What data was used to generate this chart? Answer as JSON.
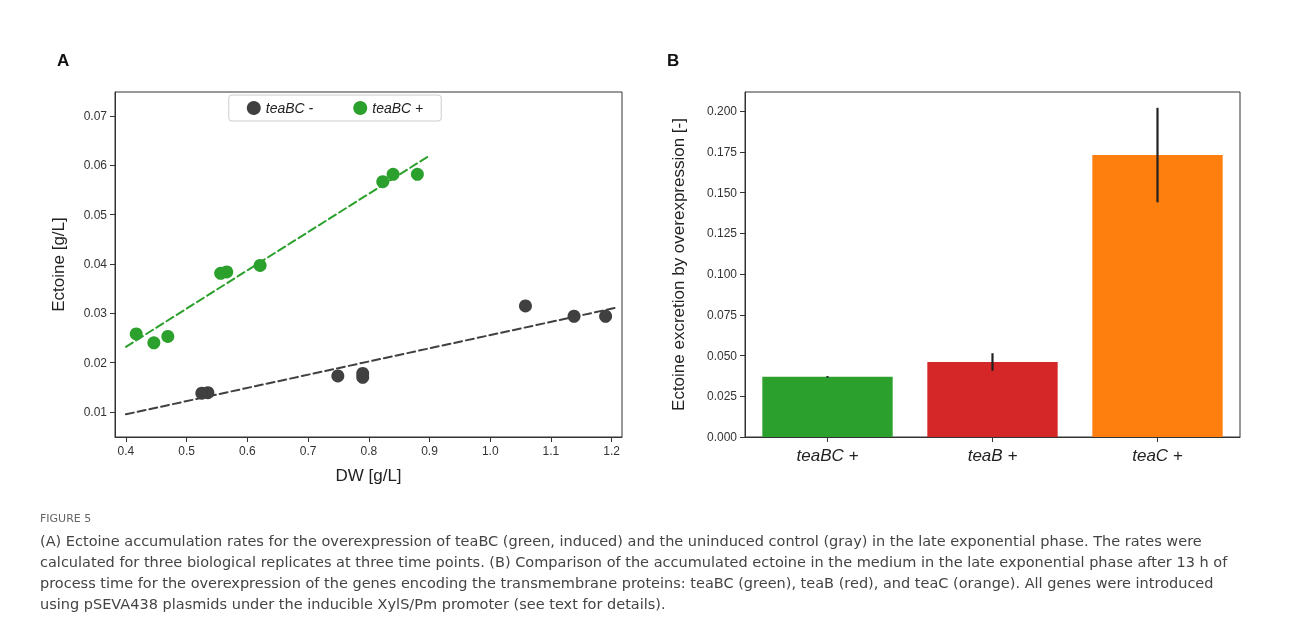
{
  "chart_data": [
    {
      "type": "scatter",
      "title": "A",
      "xlabel": "DW [g/L]",
      "ylabel": "Ectoine [g/L]",
      "xlim": [
        0.382,
        1.217
      ],
      "ylim": [
        0.0049,
        0.0749
      ],
      "xticks": [
        {
          "value": 0.4,
          "label": "0.4"
        },
        {
          "value": 0.5,
          "label": "0.5"
        },
        {
          "value": 0.6,
          "label": "0.6"
        },
        {
          "value": 0.7,
          "label": "0.7"
        },
        {
          "value": 0.8,
          "label": "0.8"
        },
        {
          "value": 0.9,
          "label": "0.9"
        },
        {
          "value": 1,
          "label": "1.0"
        },
        {
          "value": 1.1,
          "label": "1.1"
        },
        {
          "value": 1.2,
          "label": "1.2"
        }
      ],
      "yticks": [
        0.01,
        0.02,
        0.03,
        0.04,
        0.05,
        0.06,
        0.07
      ],
      "legend": "top",
      "grid": false,
      "series": [
        {
          "name": "teaBC -",
          "type": "scatter",
          "marker": "circle",
          "color": "#404040",
          "x": [
            0.525,
            0.535,
            0.749,
            0.79,
            0.79,
            1.058,
            1.138,
            1.19
          ],
          "values": [
            0.0138,
            0.0139,
            0.0173,
            0.0178,
            0.017,
            0.0315,
            0.0294,
            0.0294
          ]
        },
        {
          "name": "teaBC +",
          "type": "scatter",
          "marker": "circle",
          "color": "#2ca02c",
          "x": [
            0.417,
            0.446,
            0.469,
            0.556,
            0.566,
            0.621,
            0.823,
            0.84,
            0.88
          ],
          "values": [
            0.0258,
            0.024,
            0.0253,
            0.0381,
            0.0384,
            0.0397,
            0.0567,
            0.0582,
            0.0582
          ]
        },
        {
          "type": "line",
          "marker": "none",
          "color": "#404040",
          "line_style": "dashed",
          "x": [
            0.4,
            1.21
          ],
          "values": [
            0.0095,
            0.0312
          ]
        },
        {
          "type": "line",
          "marker": "none",
          "color": "#2ca02c",
          "line_style": "dashed",
          "x": [
            0.4,
            0.9
          ],
          "values": [
            0.0232,
            0.062
          ]
        }
      ]
    },
    {
      "type": "bar",
      "title": "B",
      "ylabel": "Ectoine excretion by overexpression [-]",
      "categories": [
        "teaBC +",
        "teaB +",
        "teaC +"
      ],
      "values": [
        0.0369,
        0.046,
        0.173
      ],
      "errors": [
        0.0005,
        0.0054,
        0.029
      ],
      "colors": [
        "#2ca02c",
        "#d62728",
        "#ff7f0e"
      ],
      "ylim": [
        0,
        0.2117
      ],
      "yticks": [
        {
          "value": 0,
          "label": "0.000"
        },
        {
          "value": 0.025,
          "label": "0.025"
        },
        {
          "value": 0.05,
          "label": "0.050"
        },
        {
          "value": 0.075,
          "label": "0.075"
        },
        {
          "value": 0.1,
          "label": "0.100"
        },
        {
          "value": 0.125,
          "label": "0.125"
        },
        {
          "value": 0.15,
          "label": "0.150"
        },
        {
          "value": 0.175,
          "label": "0.175"
        },
        {
          "value": 0.2,
          "label": "0.200"
        }
      ],
      "grid": false,
      "annotations": [
        "FIGURE 5",
        "(A) Ectoine accumulation rates for the overexpression of teaBC (green, induced) and the uninduced control (gray) in the late exponential phase. The rates were calculated for three biological replicates at three time points. (B) Comparison of the accumulated ectoine in the medium in the late exponential phase after 13 h of process time for the overexpression of the genes encoding the transmembrane proteins: teaBC (green), teaB (red), and teaC (orange). All genes were introduced using pSEVA438 plasmids under the inducible XylS/Pm promoter (see text for details)."
      ]
    }
  ]
}
